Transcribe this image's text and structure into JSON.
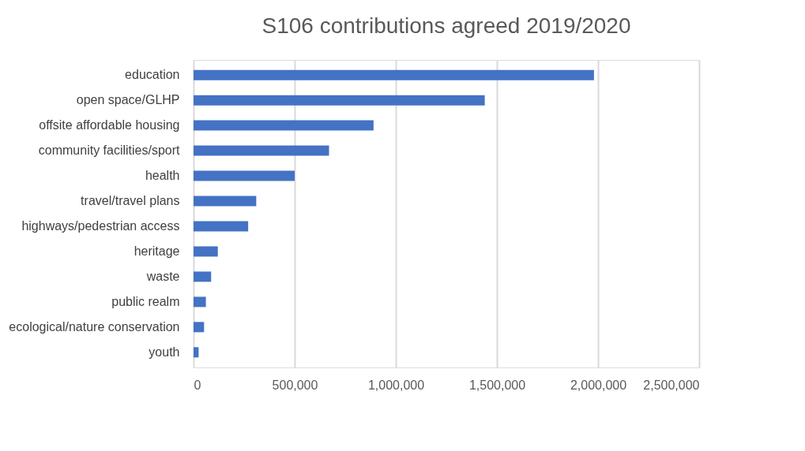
{
  "chart_data": {
    "type": "bar",
    "orientation": "horizontal",
    "title": "S106 contributions agreed 2019/2020",
    "categories": [
      "education",
      "open space/GLHP",
      "offsite affordable housing",
      "community facilities/sport",
      "health",
      "travel/travel plans",
      "highways/pedestrian access",
      "heritage",
      "waste",
      "public realm",
      "ecological/nature conservation",
      "youth"
    ],
    "values": [
      1980000,
      1440000,
      890000,
      670000,
      500000,
      310000,
      270000,
      120000,
      87000,
      61000,
      52000,
      25000
    ],
    "color": "#4472c4",
    "xlim": [
      0,
      2500000
    ],
    "xticks": [
      {
        "value": 0,
        "label": "0"
      },
      {
        "value": 500000,
        "label": "500,000"
      },
      {
        "value": 1000000,
        "label": "1,000,000"
      },
      {
        "value": 1500000,
        "label": "1,500,000"
      },
      {
        "value": 2000000,
        "label": "2,000,000"
      },
      {
        "value": 2500000,
        "label": "2,500,000"
      }
    ],
    "grid": "x"
  }
}
